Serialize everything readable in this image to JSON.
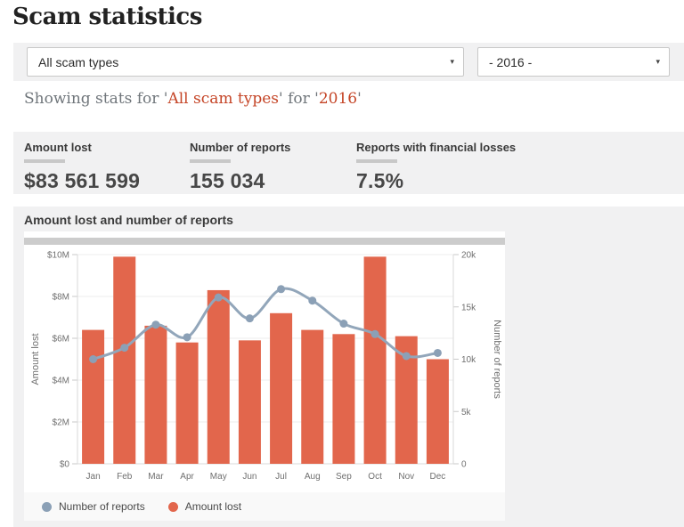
{
  "page": {
    "title": "Scam statistics"
  },
  "filters": {
    "scam_type": {
      "value": "All scam types"
    },
    "year": {
      "value": "- 2016 -"
    }
  },
  "showing": {
    "parts": [
      {
        "text": "Showing stats for '"
      },
      {
        "text": "All scam types",
        "accent": true
      },
      {
        "text": "' for '"
      },
      {
        "text": "2016",
        "accent": true
      },
      {
        "text": "'"
      }
    ]
  },
  "stats": [
    {
      "label": "Amount lost",
      "value": "$83 561 599"
    },
    {
      "label": "Number of reports",
      "value": "155 034"
    },
    {
      "label": "Reports with financial losses",
      "value": "7.5%"
    }
  ],
  "chart": {
    "title": "Amount lost and number of reports"
  },
  "legend": [
    {
      "label": "Number of reports",
      "color": "#8ba0b6"
    },
    {
      "label": "Amount lost",
      "color": "#e2664c"
    }
  ],
  "colors": {
    "accent_red": "#c54527",
    "bar_orange": "#e2664c",
    "line_blue_gray": "#92a6ba",
    "marker_blue_gray": "#8ba0b6",
    "band_gray": "#f1f1f2",
    "strip_gray": "#cccccc"
  },
  "chart_data": {
    "type": "bar+line combo",
    "title": "Amount lost and number of reports",
    "categories": [
      "Jan",
      "Feb",
      "Mar",
      "Apr",
      "May",
      "Jun",
      "Jul",
      "Aug",
      "Sep",
      "Oct",
      "Nov",
      "Dec"
    ],
    "series": [
      {
        "name": "Amount lost",
        "type": "bar",
        "axis": "left",
        "unit": "million $",
        "color": "#e2664c",
        "values": [
          6.4,
          9.9,
          6.6,
          5.8,
          8.3,
          5.9,
          7.2,
          6.4,
          6.2,
          9.9,
          6.1,
          5.0
        ]
      },
      {
        "name": "Number of reports",
        "type": "line",
        "axis": "right",
        "unit": "thousands",
        "color": "#92a6ba",
        "marker_color": "#8ba0b6",
        "values": [
          10.0,
          11.1,
          13.3,
          12.1,
          15.9,
          13.9,
          16.7,
          15.6,
          13.4,
          12.4,
          10.3,
          10.6
        ]
      }
    ],
    "left_axis": {
      "title": "Amount lost",
      "min": 0,
      "max": 10,
      "tick_labels": [
        "$0",
        "$2M",
        "$4M",
        "$6M",
        "$8M",
        "$10M"
      ]
    },
    "right_axis": {
      "title": "Number of reports",
      "min": 0,
      "max": 20,
      "tick_labels": [
        "0",
        "5k",
        "10k",
        "15k",
        "20k"
      ]
    },
    "grid": true,
    "legend_position": "bottom"
  }
}
